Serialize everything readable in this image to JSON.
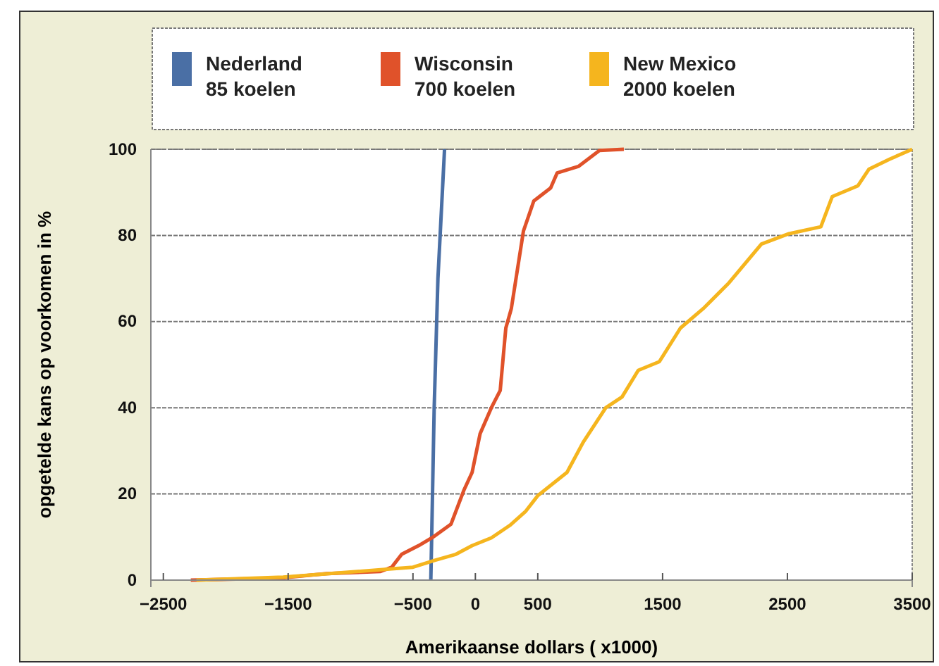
{
  "chart_data": {
    "type": "line",
    "xlabel": "Amerikaanse dollars ( x1000)",
    "ylabel": "opgetelde kans op voorkomen in %",
    "xlim": [
      -2600,
      3500
    ],
    "ylim": [
      0,
      100
    ],
    "xticks": [
      -2500,
      -1500,
      -500,
      0,
      500,
      1500,
      2500,
      3500
    ],
    "yticks": [
      0,
      20,
      40,
      60,
      80,
      100
    ],
    "grid": "y",
    "legend": "top",
    "marker": "none",
    "line_style": "solid",
    "series": [
      {
        "name": "Nederland\n85 koelen",
        "color": "#4a6fa5",
        "x": [
          -357,
          -350,
          -330,
          -300,
          -247
        ],
        "values": [
          0,
          10,
          40,
          70,
          100
        ]
      },
      {
        "name": "Wisconsin\n700 koelen",
        "color": "#e0522a",
        "x": [
          -2280,
          -1560,
          -1190,
          -760,
          -670,
          -590,
          -455,
          -338,
          -195,
          -90,
          -26,
          38,
          128,
          199,
          244,
          288,
          385,
          468,
          603,
          655,
          825,
          994,
          1190
        ],
        "values": [
          0,
          0.5,
          1.5,
          2,
          3,
          6,
          8,
          10,
          13,
          21,
          25,
          34,
          40,
          44,
          58.5,
          63,
          81,
          88,
          91,
          94.5,
          96,
          99.7,
          100
        ]
      },
      {
        "name": "New Mexico\n2000 koelen",
        "color": "#f5b51e",
        "x": [
          -2235,
          -1540,
          -670,
          -500,
          -325,
          -156,
          -26,
          128,
          276,
          404,
          500,
          734,
          864,
          1045,
          1175,
          1305,
          1474,
          1643,
          1825,
          2032,
          2292,
          2513,
          2768,
          2859,
          3064,
          3154,
          3320,
          3500
        ],
        "values": [
          0,
          0.7,
          2.6,
          3,
          4.6,
          6,
          8,
          9.8,
          12.7,
          16,
          19.6,
          25,
          32,
          40,
          42.5,
          48.7,
          50.7,
          58.5,
          63,
          69,
          78,
          80.4,
          82,
          89,
          91.5,
          95.4,
          97.7,
          100
        ]
      }
    ]
  }
}
